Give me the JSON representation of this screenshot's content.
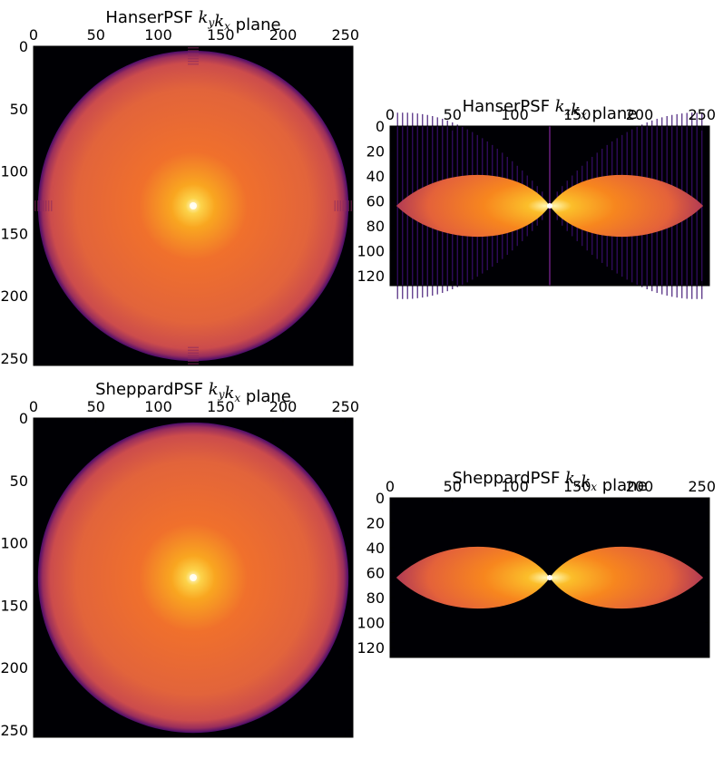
{
  "chart_data": [
    {
      "type": "heatmap",
      "title": "HanserPSF",
      "title_math": "k_y k_x",
      "title_suffix": "plane",
      "shape": "disk",
      "xlim": [
        0,
        256
      ],
      "ylim": [
        256,
        0
      ],
      "xticks": [
        0,
        50,
        100,
        150,
        200,
        250
      ],
      "yticks": [
        0,
        50,
        100,
        150,
        200,
        250
      ],
      "grid": false,
      "colormap": "inferno"
    },
    {
      "type": "heatmap",
      "title": "HanserPSF",
      "title_math": "k_z k_x",
      "title_suffix": "plane",
      "shape": "bowtie",
      "xlim": [
        0,
        256
      ],
      "ylim": [
        128,
        0
      ],
      "xticks": [
        0,
        50,
        100,
        150,
        200,
        250
      ],
      "yticks": [
        0,
        20,
        40,
        60,
        80,
        100,
        120
      ],
      "grid": false,
      "colormap": "inferno"
    },
    {
      "type": "heatmap",
      "title": "SheppardPSF",
      "title_math": "k_y k_x",
      "title_suffix": "plane",
      "shape": "disk",
      "xlim": [
        0,
        256
      ],
      "ylim": [
        256,
        0
      ],
      "xticks": [
        0,
        50,
        100,
        150,
        200,
        250
      ],
      "yticks": [
        0,
        50,
        100,
        150,
        200,
        250
      ],
      "grid": false,
      "colormap": "inferno"
    },
    {
      "type": "heatmap",
      "title": "SheppardPSF",
      "title_math": "k_z k_x",
      "title_suffix": "plane",
      "shape": "bowtie",
      "xlim": [
        0,
        256
      ],
      "ylim": [
        128,
        0
      ],
      "xticks": [
        0,
        50,
        100,
        150,
        200,
        250
      ],
      "yticks": [
        0,
        20,
        40,
        60,
        80,
        100,
        120
      ],
      "grid": false,
      "colormap": "inferno"
    }
  ]
}
